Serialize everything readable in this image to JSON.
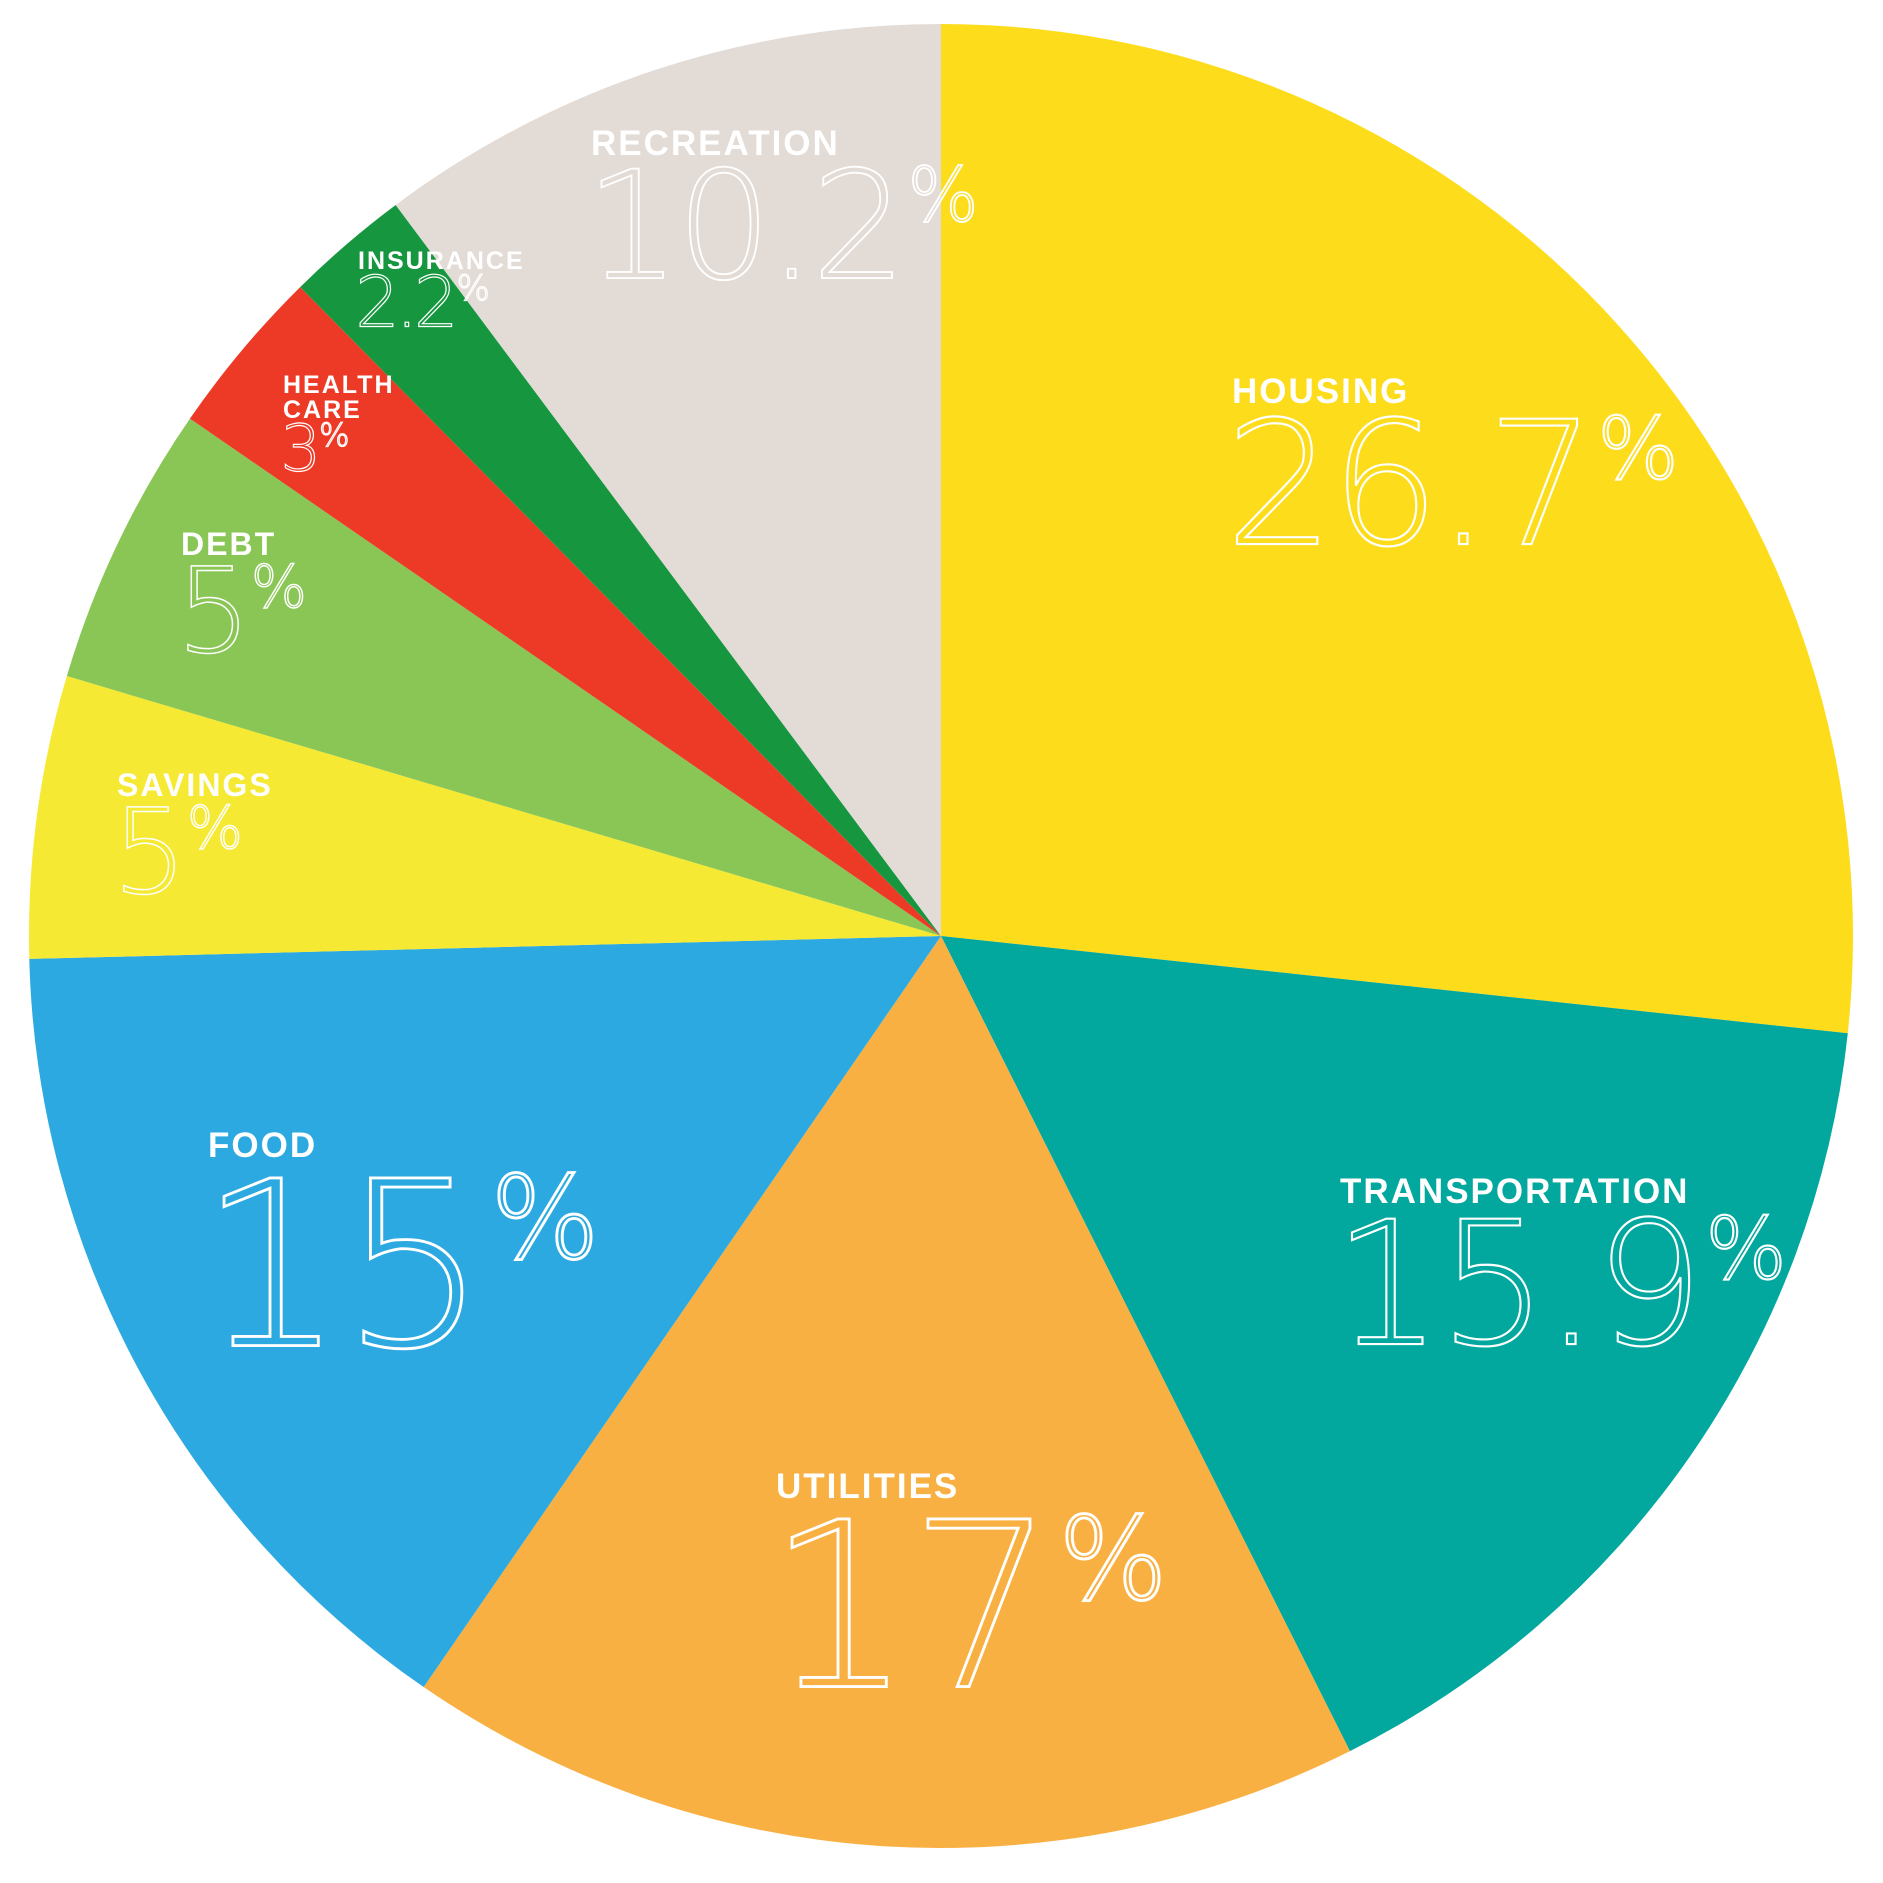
{
  "chart_data": {
    "type": "pie",
    "slices": [
      {
        "label": "HOUSING",
        "value": 26.7,
        "value_text": "26.7",
        "color": "#FDDC1C"
      },
      {
        "label": "TRANSPORTATION",
        "value": 15.9,
        "value_text": "15.9",
        "color": "#02A79E"
      },
      {
        "label": "UTILITIES",
        "value": 17,
        "value_text": "17",
        "color": "#F9B042"
      },
      {
        "label": "FOOD",
        "value": 15,
        "value_text": "15",
        "color": "#2BA9E0"
      },
      {
        "label": "SAVINGS",
        "value": 5,
        "value_text": "5",
        "color": "#F6E933"
      },
      {
        "label": "DEBT",
        "value": 5,
        "value_text": "5",
        "color": "#8AC656"
      },
      {
        "label": "HEALTH CARE",
        "value": 3,
        "value_text": "3",
        "color": "#EC3A27"
      },
      {
        "label": "INSURANCE",
        "value": 2.2,
        "value_text": "2.2",
        "color": "#16973F"
      },
      {
        "label": "RECREATION",
        "value": 10.2,
        "value_text": "10.2",
        "color": "#E3DBD6"
      }
    ],
    "percent_sign": "%",
    "start": "12 o'clock",
    "direction": "clockwise",
    "legend": "none (labels inside slices)",
    "title": "",
    "xlabel": "",
    "ylabel": ""
  }
}
